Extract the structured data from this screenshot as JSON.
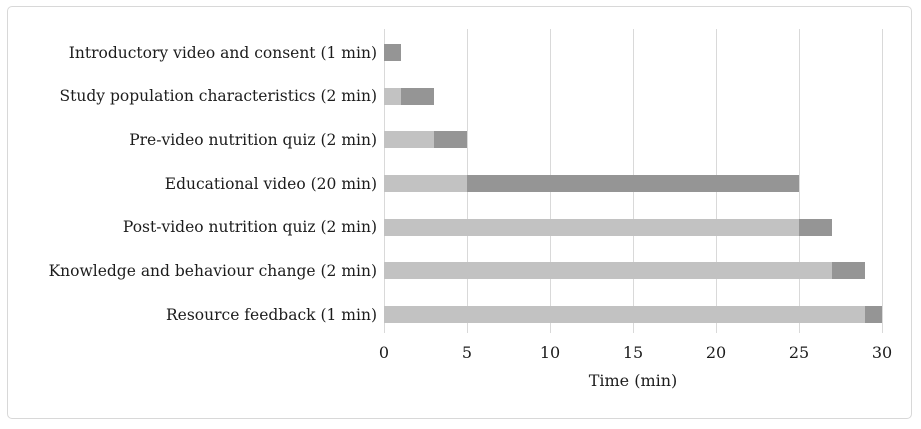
{
  "figure": {
    "background": "#ffffff",
    "frame_border_color": "#d8d8d8"
  },
  "chart_data": {
    "type": "bar",
    "subtype": "gantt",
    "orientation": "horizontal",
    "title": "",
    "xlabel": "Time (min)",
    "ylabel": "",
    "xlim": [
      0,
      30
    ],
    "xticks": [
      0,
      5,
      10,
      15,
      20,
      25,
      30
    ],
    "grid": true,
    "legend": false,
    "colors": {
      "offset_segment": "#c2c2c2",
      "duration_segment": "#959595",
      "gridline": "#d9d9d9",
      "text": "#1c1c1c"
    },
    "tasks": [
      {
        "label": "Introductory video and consent (1 min)",
        "start": 0,
        "duration": 1
      },
      {
        "label": "Study population characteristics (2 min)",
        "start": 1,
        "duration": 2
      },
      {
        "label": "Pre-video nutrition quiz (2 min)",
        "start": 3,
        "duration": 2
      },
      {
        "label": "Educational video (20 min)",
        "start": 5,
        "duration": 20
      },
      {
        "label": "Post-video nutrition quiz (2 min)",
        "start": 25,
        "duration": 2
      },
      {
        "label": "Knowledge and behaviour change (2 min)",
        "start": 27,
        "duration": 2
      },
      {
        "label": "Resource feedback (1 min)",
        "start": 29,
        "duration": 1
      }
    ]
  }
}
